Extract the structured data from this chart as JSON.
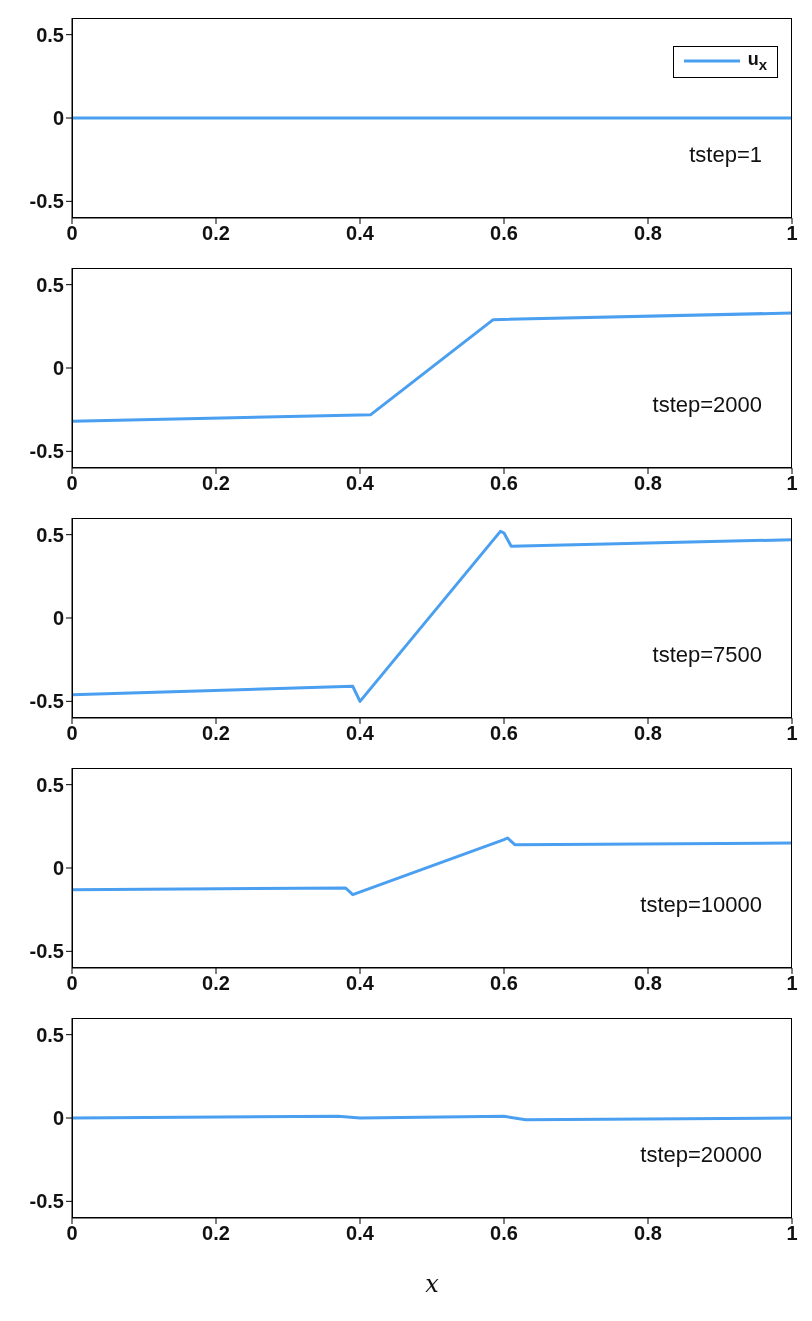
{
  "chart_data": [
    {
      "type": "line",
      "xlim": [
        0,
        1
      ],
      "ylim": [
        -0.6,
        0.6
      ],
      "xticks": [
        0,
        0.2,
        0.4,
        0.6,
        0.8,
        1
      ],
      "yticks": [
        -0.5,
        0,
        0.5
      ],
      "grid": false,
      "legend": "top right",
      "annotations": [
        "tstep=1"
      ],
      "series": [
        {
          "name": "u$_{x}$",
          "color": "#4a9ff0",
          "x": [
            0,
            0.5,
            1
          ],
          "values": [
            0,
            0,
            0
          ]
        }
      ]
    },
    {
      "type": "line",
      "xlim": [
        0,
        1
      ],
      "ylim": [
        -0.6,
        0.6
      ],
      "xticks": [
        0,
        0.2,
        0.4,
        0.6,
        0.8,
        1
      ],
      "yticks": [
        -0.5,
        0,
        0.5
      ],
      "grid": false,
      "annotations": [
        "tstep=2000"
      ],
      "series": [
        {
          "color": "#4a9ff0",
          "x": [
            0,
            0.415,
            0.585,
            1
          ],
          "values": [
            -0.32,
            -0.28,
            0.29,
            0.33
          ]
        }
      ]
    },
    {
      "type": "line",
      "xlim": [
        0,
        1
      ],
      "ylim": [
        -0.6,
        0.6
      ],
      "xticks": [
        0,
        0.2,
        0.4,
        0.6,
        0.8,
        1
      ],
      "yticks": [
        -0.5,
        0,
        0.5
      ],
      "grid": false,
      "annotations": [
        "tstep=7500"
      ],
      "series": [
        {
          "color": "#4a9ff0",
          "x": [
            0,
            0.39,
            0.4,
            0.595,
            0.6,
            0.61,
            1
          ],
          "values": [
            -0.46,
            -0.41,
            -0.5,
            0.52,
            0.51,
            0.43,
            0.47
          ]
        }
      ]
    },
    {
      "type": "line",
      "xlim": [
        0,
        1
      ],
      "ylim": [
        -0.6,
        0.6
      ],
      "xticks": [
        0,
        0.2,
        0.4,
        0.6,
        0.8,
        1
      ],
      "yticks": [
        -0.5,
        0,
        0.5
      ],
      "grid": false,
      "annotations": [
        "tstep=10000"
      ],
      "series": [
        {
          "color": "#4a9ff0",
          "x": [
            0,
            0.38,
            0.39,
            0.6,
            0.605,
            0.615,
            1
          ],
          "values": [
            -0.13,
            -0.12,
            -0.16,
            0.17,
            0.18,
            0.14,
            0.15
          ]
        }
      ]
    },
    {
      "type": "line",
      "xlim": [
        0,
        1
      ],
      "ylim": [
        -0.6,
        0.6
      ],
      "xticks": [
        0,
        0.2,
        0.4,
        0.6,
        0.8,
        1
      ],
      "yticks": [
        -0.5,
        0,
        0.5
      ],
      "grid": false,
      "xlabel": "x",
      "annotations": [
        "tstep=20000"
      ],
      "series": [
        {
          "color": "#4a9ff0",
          "x": [
            0,
            0.37,
            0.4,
            0.6,
            0.63,
            1
          ],
          "values": [
            0,
            0.01,
            0,
            0.01,
            -0.01,
            0
          ]
        }
      ]
    }
  ]
}
